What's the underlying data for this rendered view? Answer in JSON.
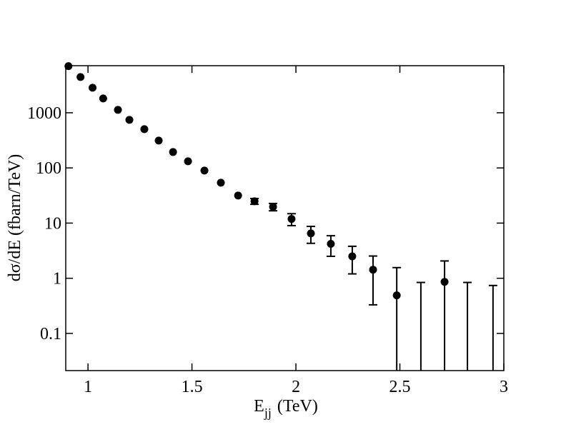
{
  "chart_data": {
    "type": "scatter",
    "x_label": "E",
    "x_label_sub": "jj",
    "x_label_unit": "(TeV)",
    "y_label": "dσ/dE  (fbarn/TeV)",
    "log_y": true,
    "xlim": [
      0.893,
      3
    ],
    "ylim": [
      0.0212,
      7130
    ],
    "xticks": [
      1,
      1.5,
      2,
      2.5,
      3
    ],
    "yticks": [
      0.1,
      1,
      10,
      100,
      1000
    ],
    "color": "#000000",
    "x": [
      0.906,
      0.964,
      1.022,
      1.073,
      1.144,
      1.199,
      1.271,
      1.34,
      1.409,
      1.481,
      1.56,
      1.639,
      1.722,
      1.801,
      1.89,
      1.979,
      2.072,
      2.168,
      2.271,
      2.371,
      2.485,
      2.601,
      2.715,
      2.825,
      2.948
    ],
    "values": [
      7000,
      4440,
      2840,
      1815,
      1127,
      743,
      504,
      313,
      194,
      132,
      89.5,
      54,
      31.6,
      24.9,
      19.7,
      11.9,
      6.5,
      4.2,
      2.5,
      1.43,
      0.49,
      0,
      0.86,
      0,
      0
    ],
    "yerr": [
      0,
      0,
      0,
      0,
      0,
      0,
      0,
      0,
      0,
      0,
      0,
      0,
      0,
      3,
      3,
      2.9,
      2.2,
      1.7,
      1.3,
      1.1,
      1.07,
      0.84,
      1.2,
      0.84,
      0.74
    ]
  }
}
